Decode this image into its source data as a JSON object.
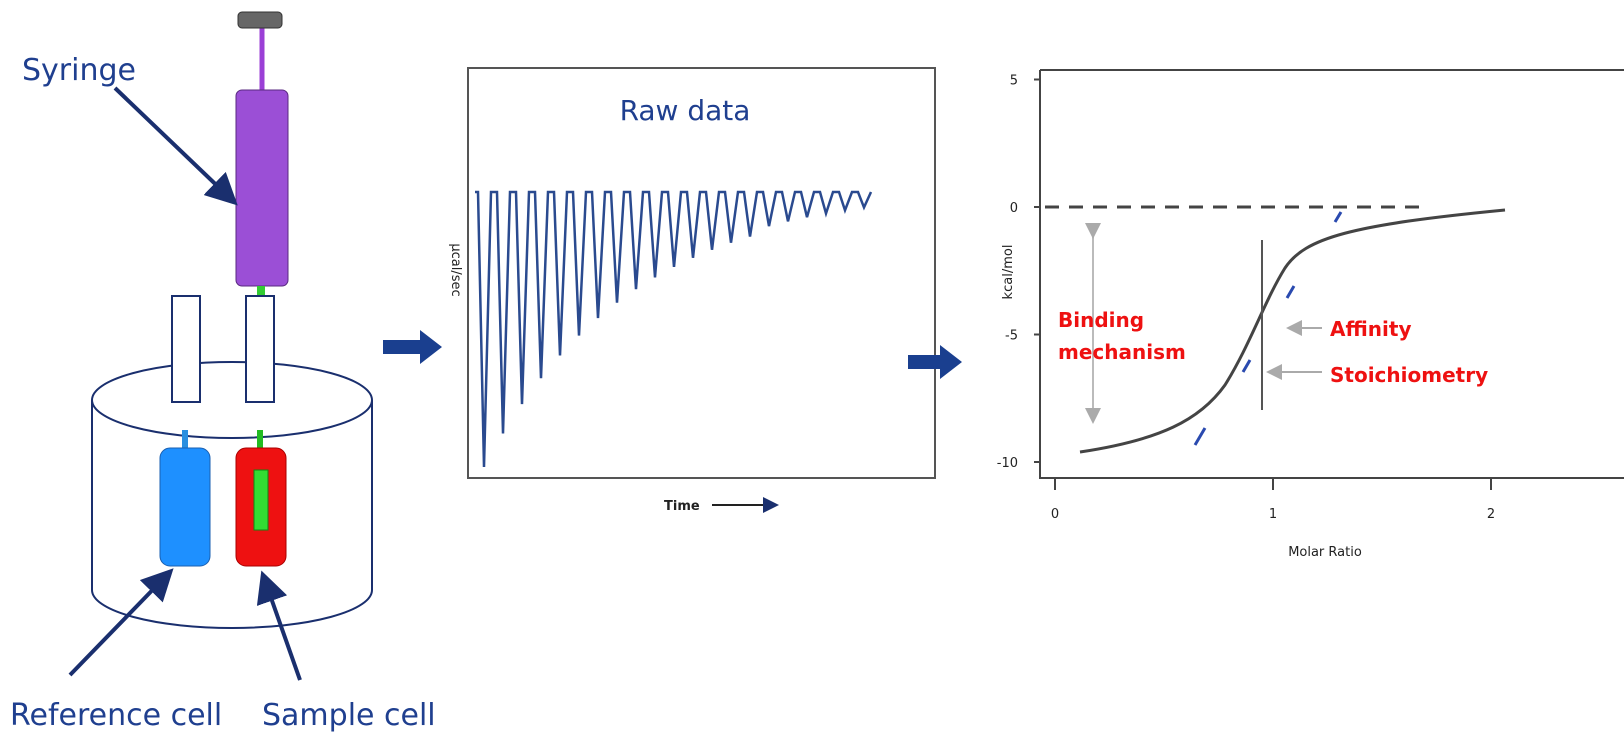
{
  "apparatus": {
    "syringe_label": "Syringe",
    "reference_cell_label": "Reference cell",
    "sample_cell_label": "Sample cell"
  },
  "raw_data": {
    "title": "Raw data",
    "y_label": "µcal/sec",
    "x_label": "Time"
  },
  "binding_isotherm": {
    "y_label": "kcal/mol",
    "x_label": "Molar Ratio",
    "yticks": [
      5,
      0,
      -5,
      -10
    ],
    "xticks": [
      0,
      1,
      2
    ],
    "mechanism_lines": [
      "Binding",
      "mechanism"
    ],
    "affinity": "Affinity",
    "stoichiometry": "Stoichiometry"
  }
}
